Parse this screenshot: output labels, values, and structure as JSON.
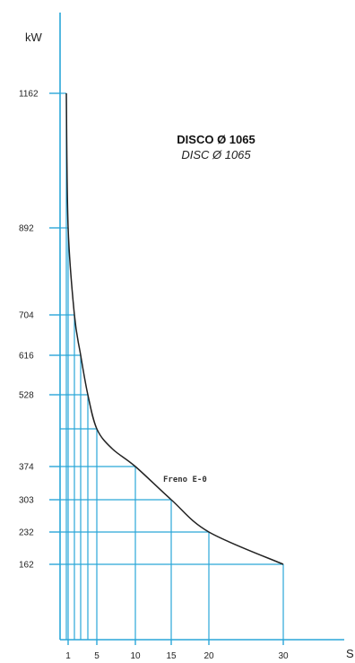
{
  "chart_data": {
    "type": "line",
    "title": "DISCO Ø 1065",
    "subtitle": "DISC Ø 1065",
    "ylabel": "kW",
    "xlabel": "S",
    "x_ticks": [
      1,
      5,
      10,
      15,
      20,
      30
    ],
    "y_ticks": [
      1162,
      892,
      704,
      616,
      528,
      374,
      303,
      232,
      162
    ],
    "xlim": [
      0,
      40
    ],
    "ylim": [
      0,
      1300
    ],
    "grid": "drop lines at data points",
    "annotation": "Freno E-0",
    "colors": {
      "axes": "#2aa6d8",
      "curve": "#222222"
    },
    "series": [
      {
        "name": "",
        "x": [
          0.5,
          1,
          2,
          3,
          4,
          5,
          7,
          10,
          15,
          20,
          30
        ],
        "y": [
          1162,
          892,
          704,
          616,
          528,
          450,
          410,
          374,
          303,
          232,
          162
        ]
      }
    ],
    "grid_points": [
      {
        "x": 0.5,
        "y": 1162
      },
      {
        "x": 1,
        "y": 892
      },
      {
        "x": 2,
        "y": 704
      },
      {
        "x": 3,
        "y": 616
      },
      {
        "x": 4,
        "y": 528
      },
      {
        "x": 5,
        "y": 450
      },
      {
        "x": 10,
        "y": 374
      },
      {
        "x": 15,
        "y": 303
      },
      {
        "x": 20,
        "y": 232
      },
      {
        "x": 30,
        "y": 162
      }
    ]
  }
}
